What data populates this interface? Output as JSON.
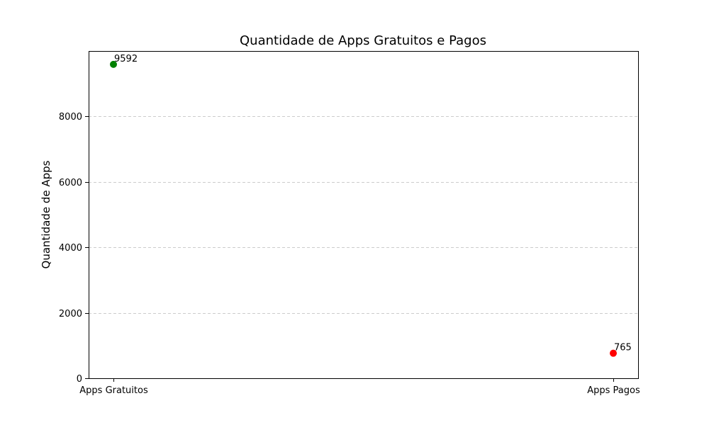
{
  "chart_data": {
    "type": "scatter",
    "title": "Quantidade de Apps Gratuitos e Pagos",
    "xlabel": "",
    "ylabel": "Quantidade de Apps",
    "categories": [
      "Apps Gratuitos",
      "Apps Pagos"
    ],
    "values": [
      9592,
      765
    ],
    "point_colors": [
      "#008000",
      "#ff0000"
    ],
    "data_labels": [
      "9592",
      "765"
    ],
    "ylim": [
      0,
      10000
    ],
    "yticks": [
      0,
      2000,
      4000,
      6000,
      8000
    ],
    "ytick_labels": [
      "0",
      "2000",
      "4000",
      "6000",
      "8000"
    ],
    "grid": true,
    "grid_axis": "y",
    "grid_style": "dashed"
  }
}
